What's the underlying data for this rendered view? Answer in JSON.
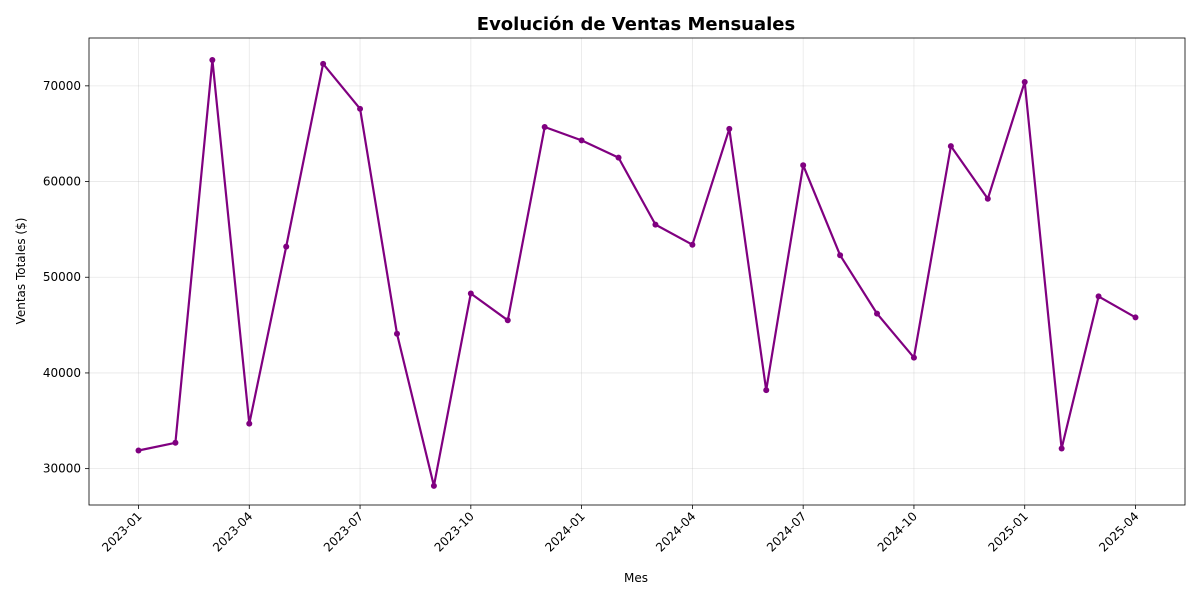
{
  "chart_data": {
    "type": "line",
    "title": "Evolución de Ventas Mensuales",
    "xlabel": "Mes",
    "ylabel": "Ventas Totales ($)",
    "grid": true,
    "color": "#800080",
    "x": [
      "2023-01",
      "2023-02",
      "2023-03",
      "2023-04",
      "2023-05",
      "2023-06",
      "2023-07",
      "2023-08",
      "2023-09",
      "2023-10",
      "2023-11",
      "2023-12",
      "2024-01",
      "2024-02",
      "2024-03",
      "2024-04",
      "2024-05",
      "2024-06",
      "2024-07",
      "2024-08",
      "2024-09",
      "2024-10",
      "2024-11",
      "2024-12",
      "2025-01",
      "2025-02",
      "2025-03",
      "2025-04"
    ],
    "values": [
      31900,
      32700,
      72700,
      34700,
      53200,
      72300,
      67600,
      44100,
      28200,
      48300,
      45500,
      65700,
      64300,
      62500,
      55500,
      53400,
      65500,
      38200,
      61700,
      52300,
      46200,
      41600,
      63700,
      58200,
      70400,
      32100,
      48000,
      45800
    ],
    "xticks": [
      "2023-01",
      "2023-04",
      "2023-07",
      "2023-10",
      "2024-01",
      "2024-04",
      "2024-07",
      "2024-10",
      "2025-01",
      "2025-04"
    ],
    "yticks": [
      30000,
      40000,
      50000,
      60000,
      70000
    ],
    "ylim": [
      26200,
      75000
    ]
  }
}
